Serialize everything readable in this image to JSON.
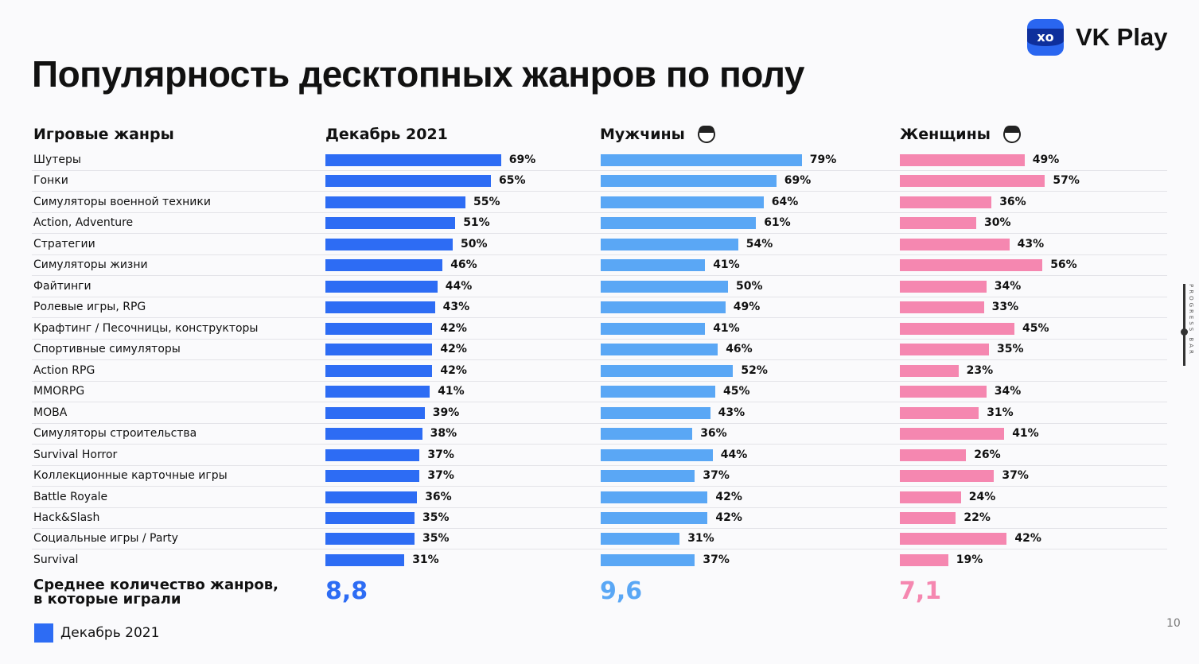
{
  "title": "Популярность десктопных жанров по полу",
  "logo": {
    "text": "VK Play",
    "icon_text": "xo"
  },
  "headers": {
    "genres": "Игровые жанры",
    "total": "Декабрь 2021",
    "men": "Мужчины",
    "women": "Женщины"
  },
  "colors": {
    "total": "#2d6cf4",
    "men": "#5aa7f5",
    "women": "#f587b0"
  },
  "chart_data": {
    "type": "bar",
    "orientation": "horizontal",
    "categories": [
      "Шутеры",
      "Гонки",
      "Симуляторы военной техники",
      "Action, Adventure",
      "Стратегии",
      "Симуляторы жизни",
      "Файтинги",
      "Ролевые игры, RPG",
      "Крафтинг / Песочницы, конструкторы",
      "Спортивные симуляторы",
      "Action RPG",
      "MMORPG",
      "MOBA",
      "Симуляторы строительства",
      "Survival Horror",
      "Коллекционные карточные игры",
      "Battle Royale",
      "Hack&Slash",
      "Социальные игры / Party",
      "Survival"
    ],
    "series": [
      {
        "name": "Декабрь 2021",
        "values": [
          69,
          65,
          55,
          51,
          50,
          46,
          44,
          43,
          42,
          42,
          42,
          41,
          39,
          38,
          37,
          37,
          36,
          35,
          35,
          31
        ]
      },
      {
        "name": "Мужчины",
        "values": [
          79,
          69,
          64,
          61,
          54,
          41,
          50,
          49,
          41,
          46,
          52,
          45,
          43,
          36,
          44,
          37,
          42,
          42,
          31,
          37
        ]
      },
      {
        "name": "Женщины",
        "values": [
          49,
          57,
          36,
          30,
          43,
          56,
          34,
          33,
          45,
          35,
          23,
          34,
          31,
          41,
          26,
          37,
          24,
          22,
          42,
          19
        ]
      }
    ],
    "unit": "%"
  },
  "average": {
    "label_line1": "Среднее количество жанров,",
    "label_line2": "в которые играли",
    "total": "8,8",
    "men": "9,6",
    "women": "7,1"
  },
  "legend": {
    "label": "Декабрь 2021"
  },
  "page_number": "10",
  "progress": {
    "label": "PROGRESS BAR",
    "value": 0.57
  }
}
